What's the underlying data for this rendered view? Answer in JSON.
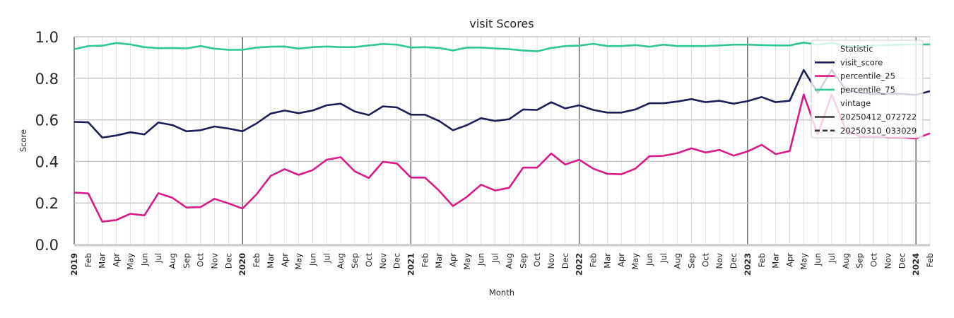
{
  "chart_data": {
    "type": "line",
    "title": "visit Scores",
    "xlabel": "Month",
    "ylabel": "Score",
    "ylim": [
      0.0,
      1.0
    ],
    "yticks": [
      "0.0",
      "0.2",
      "0.4",
      "0.6",
      "0.8",
      "1.0"
    ],
    "grid": true,
    "legend_position": "upper right",
    "x": [
      "2019-01",
      "2019-02",
      "2019-03",
      "2019-04",
      "2019-05",
      "2019-06",
      "2019-07",
      "2019-08",
      "2019-09",
      "2019-10",
      "2019-11",
      "2019-12",
      "2020-01",
      "2020-02",
      "2020-03",
      "2020-04",
      "2020-05",
      "2020-06",
      "2020-07",
      "2020-08",
      "2020-09",
      "2020-10",
      "2020-11",
      "2020-12",
      "2021-01",
      "2021-02",
      "2021-03",
      "2021-04",
      "2021-05",
      "2021-06",
      "2021-07",
      "2021-08",
      "2021-09",
      "2021-10",
      "2021-11",
      "2021-12",
      "2022-01",
      "2022-02",
      "2022-03",
      "2022-04",
      "2022-05",
      "2022-06",
      "2022-07",
      "2022-08",
      "2022-09",
      "2022-10",
      "2022-11",
      "2022-12",
      "2023-01",
      "2023-02",
      "2023-03",
      "2023-04",
      "2023-05",
      "2023-06",
      "2023-07",
      "2023-08",
      "2023-09",
      "2023-10",
      "2023-11",
      "2023-12",
      "2024-01",
      "2024-02"
    ],
    "xtick_labels": [
      "2019",
      "Feb",
      "Mar",
      "Apr",
      "May",
      "Jun",
      "Jul",
      "Aug",
      "Sep",
      "Oct",
      "Nov",
      "Dec",
      "2020",
      "Feb",
      "Mar",
      "Apr",
      "May",
      "Jun",
      "Jul",
      "Aug",
      "Sep",
      "Oct",
      "Nov",
      "Dec",
      "2021",
      "Feb",
      "Mar",
      "Apr",
      "May",
      "Jun",
      "Jul",
      "Aug",
      "Sep",
      "Oct",
      "Nov",
      "Dec",
      "2022",
      "Feb",
      "Mar",
      "Apr",
      "May",
      "Jun",
      "Jul",
      "Aug",
      "Sep",
      "Oct",
      "Nov",
      "Dec",
      "2023",
      "Feb",
      "Mar",
      "Apr",
      "May",
      "Jun",
      "Jul",
      "Aug",
      "Sep",
      "Oct",
      "Nov",
      "Dec",
      "2024",
      "Feb"
    ],
    "series": [
      {
        "name": "percentile_75",
        "color": "#2ec795",
        "vintage": "20250412_072722",
        "values": [
          0.94,
          0.955,
          0.957,
          0.97,
          0.963,
          0.95,
          0.945,
          0.946,
          0.944,
          0.955,
          0.943,
          0.937,
          0.937,
          0.948,
          0.952,
          0.953,
          0.943,
          0.95,
          0.953,
          0.95,
          0.95,
          0.958,
          0.965,
          0.962,
          0.948,
          0.95,
          0.946,
          0.934,
          0.948,
          0.948,
          0.944,
          0.94,
          0.934,
          0.93,
          0.946,
          0.955,
          0.957,
          0.966,
          0.955,
          0.955,
          0.96,
          0.952,
          0.962,
          0.955,
          0.955,
          0.955,
          0.958,
          0.962,
          0.962,
          0.96,
          0.958,
          0.958,
          0.972,
          0.962,
          0.97,
          0.955,
          0.955,
          0.958,
          0.96,
          0.962,
          0.963,
          0.963
        ]
      },
      {
        "name": "visit_score",
        "color": "#1c1f56",
        "vintage": "20250412_072722",
        "values": [
          0.59,
          0.588,
          0.515,
          0.525,
          0.54,
          0.53,
          0.587,
          0.575,
          0.545,
          0.55,
          0.568,
          0.558,
          0.545,
          0.583,
          0.63,
          0.645,
          0.632,
          0.645,
          0.67,
          0.678,
          0.64,
          0.623,
          0.665,
          0.66,
          0.625,
          0.625,
          0.595,
          0.55,
          0.575,
          0.608,
          0.595,
          0.603,
          0.65,
          0.648,
          0.685,
          0.655,
          0.67,
          0.648,
          0.635,
          0.635,
          0.65,
          0.68,
          0.68,
          0.688,
          0.7,
          0.685,
          0.692,
          0.678,
          0.69,
          0.71,
          0.685,
          0.692,
          0.84,
          0.73,
          0.84,
          0.745,
          0.73,
          0.725,
          0.725,
          0.725,
          0.72,
          0.738
        ]
      },
      {
        "name": "percentile_25",
        "color": "#d81b86",
        "vintage": "20250412_072722",
        "values": [
          0.25,
          0.246,
          0.11,
          0.118,
          0.148,
          0.14,
          0.247,
          0.225,
          0.178,
          0.18,
          0.22,
          0.198,
          0.173,
          0.242,
          0.33,
          0.363,
          0.335,
          0.358,
          0.408,
          0.42,
          0.352,
          0.32,
          0.398,
          0.39,
          0.322,
          0.322,
          0.26,
          0.185,
          0.23,
          0.288,
          0.26,
          0.273,
          0.37,
          0.37,
          0.438,
          0.385,
          0.408,
          0.365,
          0.34,
          0.338,
          0.365,
          0.425,
          0.427,
          0.44,
          0.463,
          0.443,
          0.455,
          0.428,
          0.448,
          0.48,
          0.435,
          0.45,
          0.722,
          0.53,
          0.722,
          0.55,
          0.52,
          0.52,
          0.515,
          0.515,
          0.51,
          0.535
        ]
      }
    ],
    "legend": {
      "title_statistic": "Statistic",
      "items": [
        {
          "label": "visit_score",
          "color": "#1c1f56",
          "style": "solid"
        },
        {
          "label": "percentile_25",
          "color": "#d81b86",
          "style": "solid"
        },
        {
          "label": "percentile_75",
          "color": "#2ec795",
          "style": "solid"
        }
      ],
      "title_vintage": "vintage",
      "vintages": [
        {
          "label": "20250412_072722",
          "style": "solid"
        },
        {
          "label": "20250310_033029",
          "style": "dashed"
        }
      ]
    }
  }
}
